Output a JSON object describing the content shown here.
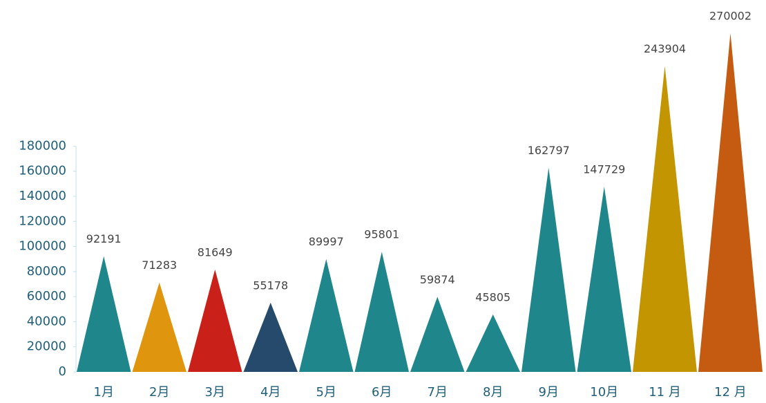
{
  "chart_data": {
    "type": "triangle-bar",
    "categories": [
      "1月",
      "2月",
      "3月",
      "4月",
      "5月",
      "6月",
      "7月",
      "8月",
      "9月",
      "10月",
      "11 月",
      "12 月"
    ],
    "values": [
      92191,
      71283,
      81649,
      55178,
      89997,
      95801,
      59874,
      45805,
      162797,
      147729,
      243904,
      270002
    ],
    "colors": [
      "#1f878c",
      "#e0950e",
      "#c9201a",
      "#264a6b",
      "#1f878c",
      "#1f878c",
      "#1f878c",
      "#1f878c",
      "#1f878c",
      "#1f878c",
      "#c39500",
      "#c55a11"
    ],
    "ylim": [
      0,
      280000
    ],
    "yticks": [
      0,
      20000,
      40000,
      60000,
      80000,
      100000,
      120000,
      140000,
      160000,
      180000
    ],
    "grid": false
  }
}
